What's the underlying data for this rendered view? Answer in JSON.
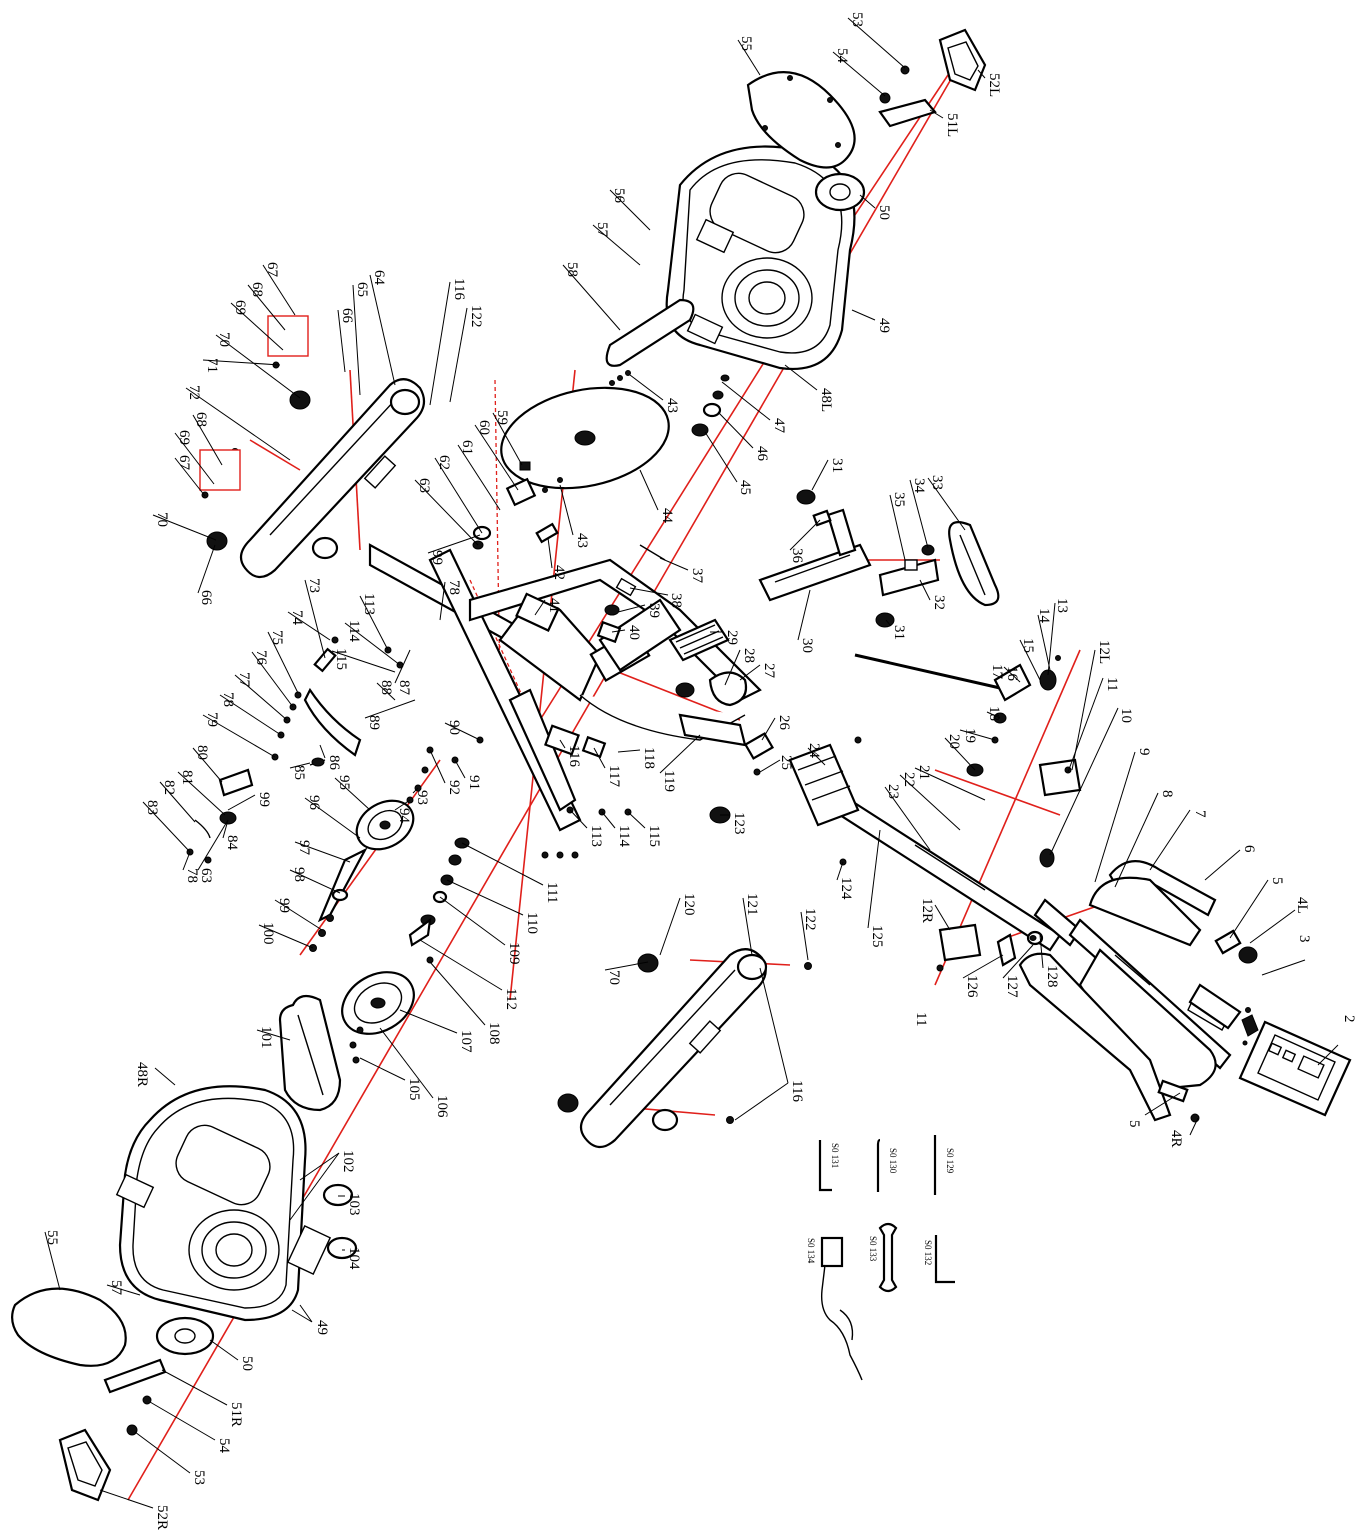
{
  "diagram": {
    "labels": {
      "p2": "2",
      "p3": "3",
      "p4l": "4L",
      "p4r": "4R",
      "p5a": "5",
      "p5b": "5",
      "p6": "6",
      "p7": "7",
      "p8": "8",
      "p9": "9",
      "p10": "10",
      "p11a": "11",
      "p11b": "11",
      "p12l": "12L",
      "p12r": "12R",
      "p13": "13",
      "p14": "14",
      "p15": "15",
      "p16": "16",
      "p17": "17",
      "p18": "18",
      "p19": "19",
      "p20": "20",
      "p21": "21",
      "p22": "22",
      "p23": "23",
      "p24": "24",
      "p25": "25",
      "p26": "26",
      "p27": "27",
      "p28": "28",
      "p29": "29",
      "p30": "30",
      "p31a": "31",
      "p31b": "31",
      "p32": "32",
      "p33": "33",
      "p34": "34",
      "p35": "35",
      "p36": "36",
      "p37": "37",
      "p38": "38",
      "p39": "39",
      "p40": "40",
      "p41": "41",
      "p42": "42",
      "p43a": "43",
      "p43b": "43",
      "p44": "44",
      "p45": "45",
      "p46": "46",
      "p47": "47",
      "p48l": "48L",
      "p48r": "48R",
      "p49a": "49",
      "p49b": "49",
      "p50a": "50",
      "p50b": "50",
      "p51l": "51L",
      "p51r": "51R",
      "p52l": "52L",
      "p52r": "52R",
      "p53a": "53",
      "p53b": "53",
      "p54a": "54",
      "p54b": "54",
      "p55a": "55",
      "p55b": "55",
      "p56": "56",
      "p57a": "57",
      "p57b": "57",
      "p58": "58",
      "p59": "59",
      "p60": "60",
      "p61": "61",
      "p62": "62",
      "p63a": "63",
      "p63b": "63",
      "p64": "64",
      "p65": "65",
      "p66a": "66",
      "p66b": "66",
      "p67a": "67",
      "p67b": "67",
      "p68a": "68",
      "p68b": "68",
      "p69a": "69",
      "p69b": "69",
      "p70a": "70",
      "p70b": "70",
      "p70c": "70",
      "p71": "71",
      "p72": "72",
      "p73": "73",
      "p74": "74",
      "p75": "75",
      "p76": "76",
      "p77": "77",
      "p78a": "78",
      "p78b": "78",
      "p78c": "78",
      "p79": "79",
      "p80": "80",
      "p81": "81",
      "p82": "82",
      "p83": "83",
      "p84": "84",
      "p85": "85",
      "p86": "86",
      "p87": "87",
      "p88": "88",
      "p89": "89",
      "p90": "90",
      "p91": "91",
      "p92": "92",
      "p93": "93",
      "p94": "94",
      "p95": "95",
      "p96": "96",
      "p97": "97",
      "p98": "98",
      "p99a": "99",
      "p99b": "99",
      "p99c": "99",
      "p100": "100",
      "p101": "101",
      "p102": "102",
      "p103": "103",
      "p104": "104",
      "p105": "105",
      "p106": "106",
      "p107": "107",
      "p108": "108",
      "p109": "109",
      "p110": "110",
      "p111": "111",
      "p112": "112",
      "p113a": "113",
      "p113b": "113",
      "p114a": "114",
      "p114b": "114",
      "p115a": "115",
      "p115b": "115",
      "p116a": "116",
      "p116b": "116",
      "p116c": "116",
      "p117": "117",
      "p118": "118",
      "p119": "119",
      "p120": "120",
      "p121": "121",
      "p122a": "122",
      "p122b": "122",
      "p123": "123",
      "p124": "124",
      "p125": "125",
      "p126": "126",
      "p127": "127",
      "p128": "128"
    },
    "tools": {
      "t129": "S0 129",
      "t130": "S0 130",
      "t131": "S0 131",
      "t132": "S0 132",
      "t133": "S0 133",
      "t134": "S0 134"
    }
  }
}
